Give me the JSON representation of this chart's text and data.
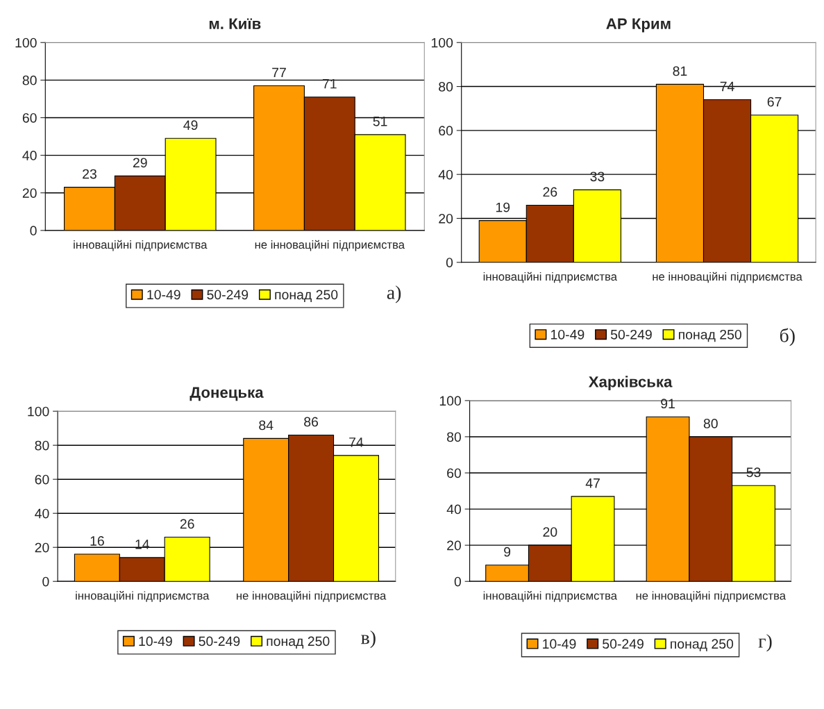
{
  "chart_data": [
    {
      "type": "bar",
      "title": "м. Київ",
      "categories": [
        "інноваційні підприємства",
        "не інноваційні підприємства"
      ],
      "series": [
        {
          "name": "10-49",
          "color": "#ff9900",
          "values": [
            23,
            77
          ]
        },
        {
          "name": "50-249",
          "color": "#993300",
          "values": [
            29,
            71
          ]
        },
        {
          "name": "понад 250",
          "color": "#ffff00",
          "values": [
            49,
            51
          ]
        }
      ],
      "ylim": [
        0,
        100
      ],
      "yticks": [
        0,
        20,
        40,
        60,
        80,
        100
      ],
      "grid": "y",
      "legend": "bottom",
      "data_labels": true,
      "annotations": [
        "а)"
      ]
    },
    {
      "type": "bar",
      "title": "АР Крим",
      "categories": [
        "інноваційні підприємства",
        "не інноваційні підприємства"
      ],
      "series": [
        {
          "name": "10-49",
          "color": "#ff9900",
          "values": [
            19,
            81
          ]
        },
        {
          "name": "50-249",
          "color": "#993300",
          "values": [
            26,
            74
          ]
        },
        {
          "name": "понад 250",
          "color": "#ffff00",
          "values": [
            33,
            67
          ]
        }
      ],
      "ylim": [
        0,
        100
      ],
      "yticks": [
        0,
        20,
        40,
        60,
        80,
        100
      ],
      "grid": "y",
      "legend": "bottom",
      "data_labels": true,
      "annotations": [
        "б)"
      ]
    },
    {
      "type": "bar",
      "title": "Донецька",
      "categories": [
        "інноваційні підприємства",
        "не інноваційні підприємства"
      ],
      "series": [
        {
          "name": "10-49",
          "color": "#ff9900",
          "values": [
            16,
            84
          ]
        },
        {
          "name": "50-249",
          "color": "#993300",
          "values": [
            14,
            86
          ]
        },
        {
          "name": "понад 250",
          "color": "#ffff00",
          "values": [
            26,
            74
          ]
        }
      ],
      "ylim": [
        0,
        100
      ],
      "yticks": [
        0,
        20,
        40,
        60,
        80,
        100
      ],
      "grid": "y",
      "legend": "bottom",
      "data_labels": true,
      "annotations": [
        "в)"
      ]
    },
    {
      "type": "bar",
      "title": "Харківська",
      "categories": [
        "інноваційні підприємства",
        "не інноваційні підприємства"
      ],
      "series": [
        {
          "name": "10-49",
          "color": "#ff9900",
          "values": [
            9,
            91
          ]
        },
        {
          "name": "50-249",
          "color": "#993300",
          "values": [
            20,
            80
          ]
        },
        {
          "name": "понад 250",
          "color": "#ffff00",
          "values": [
            47,
            53
          ]
        }
      ],
      "ylim": [
        0,
        100
      ],
      "yticks": [
        0,
        20,
        40,
        60,
        80,
        100
      ],
      "grid": "y",
      "legend": "bottom",
      "data_labels": true,
      "annotations": [
        "г)"
      ]
    }
  ]
}
